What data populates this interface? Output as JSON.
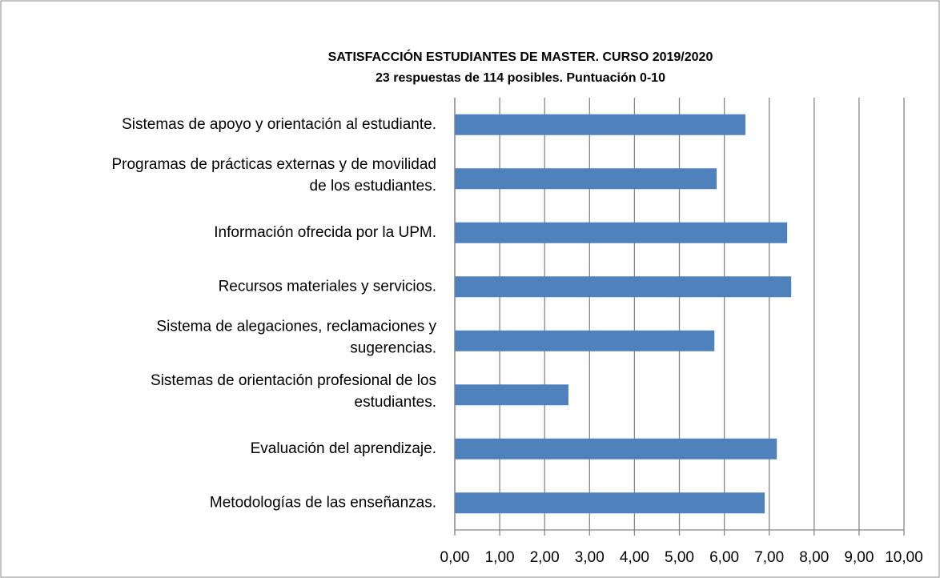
{
  "chart_data": {
    "type": "bar",
    "orientation": "horizontal",
    "title": "SATISFACCIÓN ESTUDIANTES DE MASTER. CURSO 2019/2020",
    "subtitle": "23 respuestas de 114 posibles. Puntuación 0-10",
    "categories": [
      "Sistemas de apoyo y orientación al estudiante.",
      "Programas de prácticas externas y de movilidad\nde los estudiantes.",
      "Información ofrecida por la UPM.",
      "Recursos materiales y servicios.",
      "Sistema de alegaciones, reclamaciones y\nsugerencias.",
      "Sistemas de orientación profesional de los\nestudiantes.",
      "Evaluación del aprendizaje.",
      "Metodologías de las enseñanzas."
    ],
    "values": [
      6.47,
      5.83,
      7.4,
      7.49,
      5.78,
      2.53,
      7.17,
      6.9
    ],
    "color": "#4f81bd",
    "xlim": [
      0,
      10
    ],
    "xticks": [
      {
        "value": 0,
        "label": "0,00"
      },
      {
        "value": 1,
        "label": "1,00"
      },
      {
        "value": 2,
        "label": "2,00"
      },
      {
        "value": 3,
        "label": "3,00"
      },
      {
        "value": 4,
        "label": "4,00"
      },
      {
        "value": 5,
        "label": "5,00"
      },
      {
        "value": 6,
        "label": "6,00"
      },
      {
        "value": 7,
        "label": "7,00"
      },
      {
        "value": 8,
        "label": "8,00"
      },
      {
        "value": 9,
        "label": "9,00"
      },
      {
        "value": 10,
        "label": "10,00"
      }
    ],
    "grid": true
  }
}
